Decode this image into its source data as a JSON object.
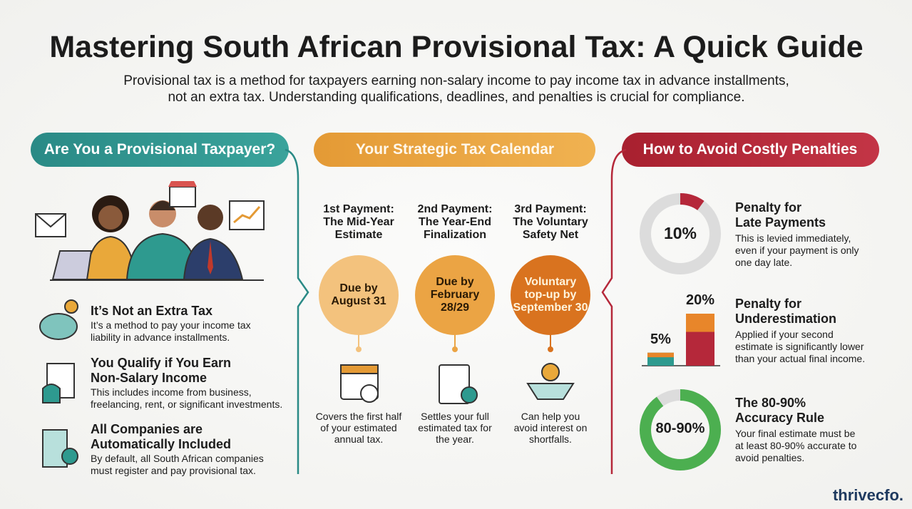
{
  "header": {
    "title": "Mastering South African Provisional Tax: A Quick Guide",
    "subtitle": [
      "Provisional tax is a method for taxpayers earning non-salary income to pay income tax in advance installments,",
      "not an extra tax. Understanding qualifications, deadlines, and penalties is crucial for compliance."
    ]
  },
  "left": {
    "heading": "Are You a Provisional Taxpayer?",
    "items": [
      {
        "title": [
          "It’s Not an Extra Tax"
        ],
        "text": [
          "It’s a method to pay your income tax",
          "liability in advance installments."
        ]
      },
      {
        "title": [
          "You Qualify if You Earn",
          "Non-Salary Income"
        ],
        "text": [
          "This includes income from business,",
          "freelancing, rent, or significant investments."
        ]
      },
      {
        "title": [
          "All Companies are",
          "Automatically Included"
        ],
        "text": [
          "By default, all South African companies",
          "must register and pay provisional tax."
        ]
      }
    ]
  },
  "middle": {
    "heading": "Your Strategic Tax Calendar",
    "payments": [
      {
        "title": [
          "1st Payment:",
          "The Mid-Year",
          "Estimate"
        ],
        "due": [
          "Due by",
          "August 31"
        ],
        "note": [
          "Covers the first half",
          "of your estimated",
          "annual tax."
        ]
      },
      {
        "title": [
          "2nd Payment:",
          "The Year-End",
          "Finalization"
        ],
        "due": [
          "Due by",
          "February",
          "28/29"
        ],
        "note": [
          "Settles your full",
          "estimated tax for",
          "the year."
        ]
      },
      {
        "title": [
          "3rd Payment:",
          "The Voluntary",
          "Safety Net"
        ],
        "due": [
          "Voluntary",
          "top-up by",
          "September 30"
        ],
        "note": [
          "Can help you",
          "avoid interest on",
          "shortfalls."
        ]
      }
    ]
  },
  "right": {
    "heading": "How to Avoid Costly Penalties",
    "penalties": [
      {
        "title": [
          "Penalty for",
          "Late Payments"
        ],
        "text": [
          "This is levied immediately,",
          "even if your payment is only",
          "one day late."
        ],
        "figure": {
          "value": 10,
          "label": "10%"
        }
      },
      {
        "title": [
          "Penalty for",
          "Underestimation"
        ],
        "text": [
          "Applied if your second",
          "estimate is significantly lower",
          "than your actual final income."
        ],
        "figure": [
          {
            "value": 5,
            "label": "5%"
          },
          {
            "value": 20,
            "label": "20%"
          }
        ]
      },
      {
        "title": [
          "The 80-90%",
          "Accuracy Rule"
        ],
        "text": [
          "Your final estimate must be",
          "at least 80-90% accurate to",
          "avoid penalties."
        ],
        "figure": {
          "values": [
            80,
            90
          ],
          "label": "80-90%"
        }
      }
    ]
  },
  "brand": "thrivecfo."
}
